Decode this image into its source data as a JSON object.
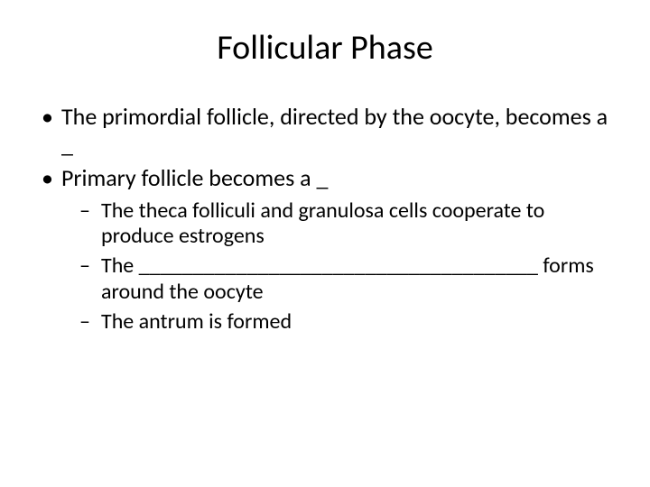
{
  "slide": {
    "title": "Follicular Phase",
    "bullets_l1": [
      "The primordial follicle, directed by the oocyte, becomes a _",
      "Primary follicle becomes a _"
    ],
    "bullets_l2": [
      "The theca folliculi and granulosa cells cooperate to produce estrogens",
      "The _____________________________________ forms around the oocyte",
      "The antrum is formed"
    ],
    "colors": {
      "background": "#ffffff",
      "text": "#000000"
    },
    "fonts": {
      "title_size": 38,
      "l1_size": 26,
      "l2_size": 24,
      "family": "Calibri"
    }
  }
}
